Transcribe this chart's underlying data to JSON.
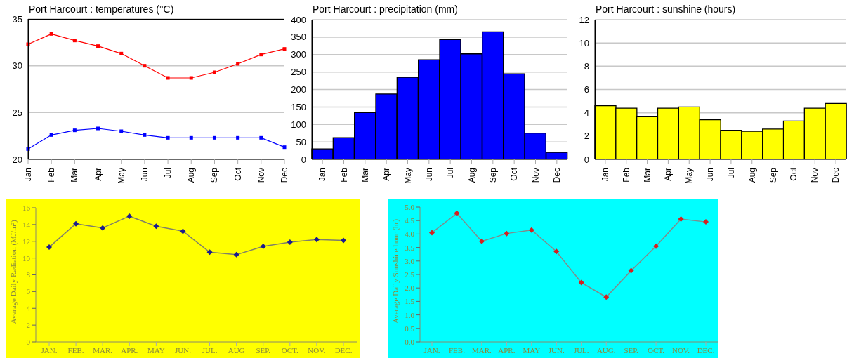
{
  "chart_data": [
    {
      "type": "line",
      "title": "Port Harcourt : temperatures (°C)",
      "categories": [
        "Jan",
        "Feb",
        "Mar",
        "Apr",
        "May",
        "Jun",
        "Jul",
        "Aug",
        "Sep",
        "Oct",
        "Nov",
        "Dec"
      ],
      "series": [
        {
          "color": "#ff0000",
          "values": [
            32.3,
            33.4,
            32.7,
            32.1,
            31.3,
            30.0,
            28.7,
            28.7,
            29.3,
            30.2,
            31.2,
            31.8
          ]
        },
        {
          "color": "#0000ff",
          "values": [
            21.1,
            22.6,
            23.1,
            23.3,
            23.0,
            22.6,
            22.3,
            22.3,
            22.3,
            22.3,
            22.3,
            21.3
          ]
        }
      ],
      "ylim": [
        20,
        35
      ],
      "yticks": [
        20,
        25,
        30,
        35
      ],
      "grid": "y",
      "marker": "square"
    },
    {
      "type": "bar",
      "title": "Port Harcourt : precipitation (mm)",
      "categories": [
        "Jan",
        "Feb",
        "Mar",
        "Apr",
        "May",
        "Jun",
        "Jul",
        "Aug",
        "Sep",
        "Oct",
        "Nov",
        "Dec"
      ],
      "values": [
        30,
        62,
        134,
        187,
        235,
        285,
        343,
        302,
        365,
        245,
        75,
        20
      ],
      "color": "#0000ff",
      "ylim": [
        0,
        400
      ],
      "yticks": [
        0,
        50,
        100,
        150,
        200,
        250,
        300,
        350,
        400
      ],
      "grid": "y"
    },
    {
      "type": "bar",
      "title": "Port Harcourt : sunshine (hours)",
      "categories": [
        "Jan",
        "Feb",
        "Mar",
        "Apr",
        "May",
        "Jun",
        "Jul",
        "Aug",
        "Sep",
        "Oct",
        "Nov",
        "Dec"
      ],
      "values": [
        4.6,
        4.4,
        3.7,
        4.4,
        4.5,
        3.4,
        2.5,
        2.4,
        2.6,
        3.3,
        4.4,
        4.8
      ],
      "color": "#ffff00",
      "ylim": [
        0,
        12
      ],
      "yticks": [
        0,
        2,
        4,
        6,
        8,
        10,
        12
      ],
      "grid": "y"
    },
    {
      "type": "line",
      "ylabel": "Average Daily Radiation (MJ/m²)",
      "categories": [
        "JAN.",
        "FEB.",
        "MAR.",
        "APR.",
        "MAY",
        "JUN.",
        "JUL.",
        "AUG",
        "SEP.",
        "OCT.",
        "NOV.",
        "DEC."
      ],
      "series": [
        {
          "color": "#7f7f6a",
          "colors": [
            "#1c1c8c",
            "#1c1c8c",
            "#1c1c8c",
            "#1c1c8c",
            "#1c1c8c",
            "#1c1c8c",
            "#1c1c8c",
            "#1c1c8c",
            "#1c1c8c",
            "#1c1c8c",
            "#1c1c8c",
            "#1c1c8c"
          ],
          "values": [
            11.3,
            14.1,
            13.6,
            15.0,
            13.8,
            13.2,
            10.7,
            10.4,
            11.4,
            11.9,
            12.2,
            12.1
          ]
        }
      ],
      "ylim": [
        0,
        16
      ],
      "yticks": [
        0,
        2,
        4,
        6,
        8,
        10,
        12,
        14,
        16
      ],
      "marker": "diamond"
    },
    {
      "type": "line",
      "ylabel": "Average Daily Sunshine hour (hr)",
      "categories": [
        "JAN.",
        "FEB.",
        "MAR.",
        "APR.",
        "MAY",
        "JUN.",
        "JUL.",
        "AUG.",
        "SEP.",
        "OCT.",
        "NOV.",
        "DEC."
      ],
      "series": [
        {
          "color": "#7f8c8c",
          "colors": [
            "#d42020",
            "#d42020",
            "#d42020",
            "#d42020",
            "#d42020",
            "#d42020",
            "#d42020",
            "#d42020",
            "#d42020",
            "#d42020",
            "#d42020",
            "#d42020"
          ],
          "values": [
            4.05,
            4.77,
            3.73,
            4.02,
            4.15,
            3.35,
            2.2,
            1.66,
            2.64,
            3.55,
            4.56,
            4.45
          ]
        }
      ],
      "ylim": [
        0,
        5
      ],
      "yticks": [
        {
          "value": 0,
          "label": "0.0"
        },
        0.5,
        {
          "value": 1,
          "label": "1.0"
        },
        1.5,
        {
          "value": 2,
          "label": "2.0"
        },
        2.5,
        {
          "value": 3,
          "label": "3.0"
        },
        3.5,
        {
          "value": 4,
          "label": "4.0"
        },
        4.5,
        {
          "value": 5,
          "label": "5.0"
        }
      ],
      "marker": "diamond"
    }
  ]
}
